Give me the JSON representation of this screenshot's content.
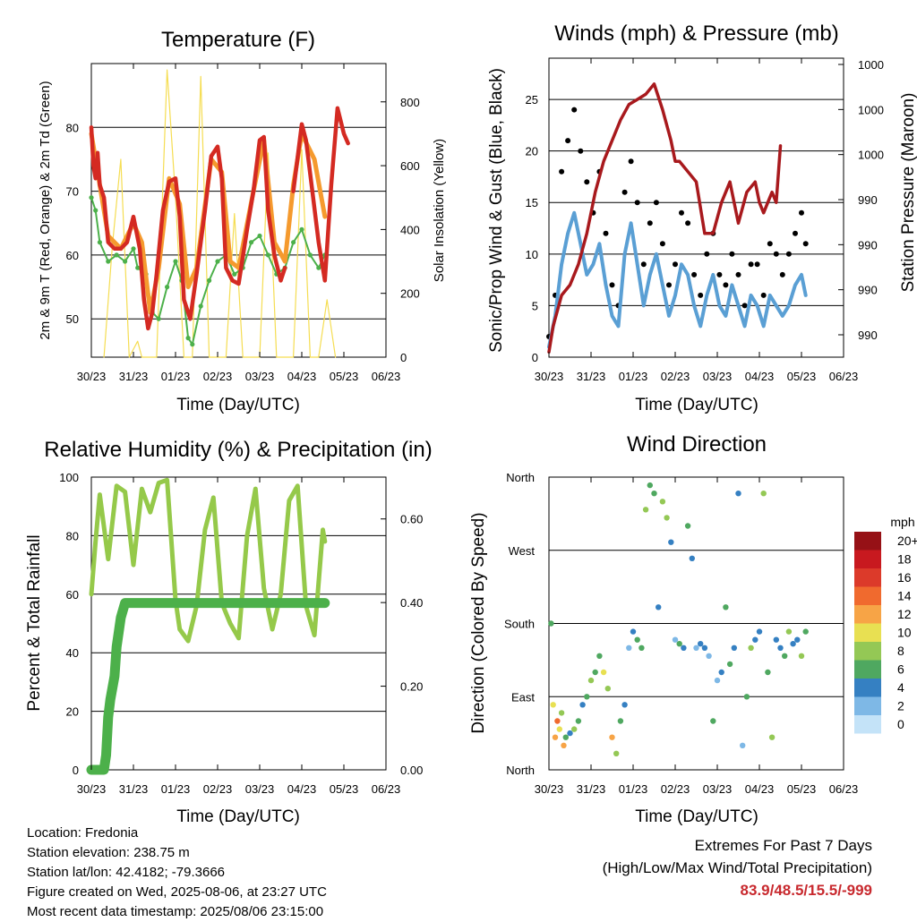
{
  "x_ticks": [
    "30/23",
    "31/23",
    "01/23",
    "02/23",
    "03/23",
    "04/23",
    "05/23",
    "06/23"
  ],
  "colors": {
    "temp_red": "#d42a22",
    "temp_orange": "#f59a2e",
    "dew_green": "#4cb04a",
    "solar_yellow": "#f5dd52",
    "wind_blue": "#5a9fd4",
    "gust_black": "#000000",
    "pressure_maroon": "#a8191d",
    "rh_green": "#95c94a",
    "precip_green": "#4cb04a",
    "extremes": "#c8292e"
  },
  "chart_data": [
    {
      "type": "line",
      "title": "Temperature (F)",
      "xlabel": "Time (Day/UTC)",
      "ylabel": "2m & 9m T (Red, Orange) & 2m Td (Green)",
      "ylabel_right": "Solar Insolation (Yellow)",
      "ylim": [
        44,
        90
      ],
      "ylim_right": [
        0,
        920
      ],
      "yticks": [
        50,
        60,
        70,
        80
      ],
      "yticks_right": [
        0,
        200,
        400,
        600,
        800
      ],
      "series": [
        {
          "name": "2m T",
          "color": "#d42a22",
          "x": [
            0,
            0.05,
            0.1,
            0.15,
            0.2,
            0.3,
            0.4,
            0.55,
            0.7,
            0.85,
            1,
            1.15,
            1.25,
            1.35,
            1.45,
            1.55,
            1.7,
            1.85,
            2,
            2.1,
            2.2,
            2.35,
            2.5,
            2.7,
            2.85,
            3,
            3.1,
            3.2,
            3.35,
            3.5,
            3.7,
            3.85,
            4,
            4.1,
            4.2,
            4.35,
            4.5,
            4.6,
            4.8,
            5,
            5.1,
            5.25,
            5.4,
            5.55,
            5.7,
            5.85,
            6,
            6.1
          ],
          "y": [
            80,
            74,
            72,
            76,
            71,
            69,
            62,
            61,
            61,
            62,
            66,
            61,
            53,
            48.5,
            51,
            57,
            67,
            71.5,
            72,
            66,
            53,
            50,
            57,
            67,
            75.5,
            77,
            72,
            58,
            56,
            55.5,
            64,
            70,
            78,
            78.5,
            67,
            60,
            56,
            58,
            70,
            80.5,
            78,
            70,
            62,
            56,
            71,
            83,
            79,
            77.5
          ]
        },
        {
          "name": "9m T",
          "color": "#f59a2e",
          "x": [
            0,
            0.2,
            0.4,
            0.7,
            1,
            1.2,
            1.4,
            1.6,
            1.85,
            2.1,
            2.3,
            2.5,
            2.85,
            3.1,
            3.3,
            3.5,
            3.85,
            4.1,
            4.35,
            4.6,
            4.8,
            5,
            5.3,
            5.55
          ],
          "y": [
            79,
            71,
            63,
            61,
            65,
            62,
            51,
            58,
            72,
            68,
            55,
            58,
            75,
            73,
            59,
            58,
            70,
            78,
            62,
            59,
            71,
            79,
            75,
            66
          ]
        },
        {
          "name": "2m Td",
          "color": "#4cb04a",
          "x": [
            0,
            0.1,
            0.2,
            0.4,
            0.6,
            0.8,
            1,
            1.1,
            1.3,
            1.45,
            1.6,
            1.8,
            2,
            2.15,
            2.3,
            2.4,
            2.6,
            2.8,
            3,
            3.2,
            3.4,
            3.6,
            3.8,
            4,
            4.2,
            4.4,
            4.6,
            4.8,
            5,
            5.2,
            5.4,
            5.55
          ],
          "y": [
            69,
            67,
            62,
            59,
            60,
            59,
            61,
            58,
            57,
            51,
            50,
            55,
            59,
            56,
            47,
            46,
            52,
            56,
            59,
            60,
            57,
            58,
            62,
            63,
            60,
            57,
            58,
            62,
            64,
            60,
            58,
            60
          ]
        },
        {
          "name": "Solar",
          "color": "#f5dd52",
          "x": [
            0.3,
            0.5,
            0.7,
            0.9,
            1.1,
            1.2,
            1.55,
            1.8,
            2,
            2.2,
            2.4,
            2.6,
            2.8,
            3,
            3.2,
            3.4,
            3.6,
            3.8,
            4,
            4.2,
            4.4,
            4.6,
            4.8,
            5,
            5.2,
            5.4,
            5.6,
            5.8
          ],
          "y": [
            0,
            350,
            620,
            0,
            50,
            0,
            0,
            900,
            500,
            0,
            0,
            880,
            0,
            0,
            0,
            450,
            0,
            0,
            0,
            640,
            0,
            0,
            0,
            650,
            0,
            0,
            180,
            0
          ]
        }
      ]
    },
    {
      "type": "scatter",
      "title": "Winds (mph) & Pressure (mb)",
      "xlabel": "Time (Day/UTC)",
      "ylabel": "Sonic/Prop Wind & Gust (Blue, Black)",
      "ylabel_right": "Station Pressure (Maroon)",
      "ylim": [
        0,
        29
      ],
      "yticks": [
        0,
        5,
        10,
        15,
        20,
        25
      ],
      "yticks_right_labels": [
        "990",
        "990",
        "990",
        "990",
        "1000",
        "1000",
        "1000"
      ],
      "series": [
        {
          "name": "Wind",
          "color": "#5a9fd4",
          "x": [
            0,
            0.15,
            0.3,
            0.45,
            0.6,
            0.75,
            0.9,
            1.05,
            1.2,
            1.35,
            1.5,
            1.65,
            1.8,
            1.95,
            2.1,
            2.25,
            2.4,
            2.55,
            2.7,
            2.85,
            3,
            3.15,
            3.3,
            3.45,
            3.6,
            3.75,
            3.9,
            4.05,
            4.2,
            4.35,
            4.5,
            4.65,
            4.8,
            4.95,
            5.1,
            5.25,
            5.4,
            5.55,
            5.7,
            5.85,
            6,
            6.1
          ],
          "y": [
            1,
            4,
            9,
            12,
            14,
            11,
            8,
            9,
            11,
            7,
            4,
            3,
            10,
            13,
            9,
            5,
            8,
            10,
            7,
            4,
            6,
            9,
            8,
            5,
            3,
            6,
            8,
            5,
            4,
            7,
            5,
            3,
            6,
            5,
            3,
            6,
            5,
            4,
            5,
            7,
            8,
            6
          ]
        },
        {
          "name": "Gust",
          "color": "#000000",
          "x": [
            0,
            0.15,
            0.3,
            0.45,
            0.6,
            0.75,
            0.9,
            1.05,
            1.2,
            1.35,
            1.5,
            1.65,
            1.8,
            1.95,
            2.1,
            2.25,
            2.4,
            2.55,
            2.7,
            2.85,
            3,
            3.15,
            3.3,
            3.45,
            3.6,
            3.75,
            3.9,
            4.05,
            4.2,
            4.35,
            4.5,
            4.65,
            4.8,
            4.95,
            5.1,
            5.25,
            5.4,
            5.55,
            5.7,
            5.85,
            6,
            6.1
          ],
          "y": [
            2,
            6,
            18,
            21,
            24,
            20,
            17,
            14,
            18,
            12,
            7,
            5,
            16,
            19,
            15,
            9,
            13,
            15,
            11,
            7,
            9,
            14,
            13,
            8,
            6,
            10,
            12,
            8,
            7,
            10,
            8,
            5,
            9,
            9,
            6,
            11,
            10,
            8,
            10,
            12,
            14,
            11
          ]
        },
        {
          "name": "Pressure",
          "color": "#a8191d",
          "x": [
            0,
            0.1,
            0.3,
            0.5,
            0.7,
            0.9,
            1.1,
            1.3,
            1.5,
            1.7,
            1.9,
            2.1,
            2.3,
            2.5,
            2.7,
            2.9,
            3,
            3.1,
            3.3,
            3.5,
            3.7,
            3.9,
            4.1,
            4.3,
            4.5,
            4.7,
            4.9,
            5,
            5.1,
            5.2,
            5.3,
            5.4,
            5.5
          ],
          "y": [
            0.5,
            3,
            6,
            7,
            9,
            12,
            16,
            19,
            21,
            23,
            24.5,
            25,
            25.5,
            26.5,
            24,
            21,
            19,
            19,
            18,
            17,
            12,
            12,
            15,
            17,
            13,
            16,
            17,
            15,
            14,
            15,
            16,
            15,
            20.5
          ]
        }
      ]
    },
    {
      "type": "line",
      "title": "Relative Humidity (%) & Precipitation (in)",
      "xlabel": "Time (Day/UTC)",
      "ylabel": "Percent & Total Rainfall",
      "ylim": [
        0,
        100
      ],
      "ylim_right": [
        0,
        0.7
      ],
      "yticks": [
        0,
        20,
        40,
        60,
        80,
        100
      ],
      "yticks_right": [
        "0.00",
        "0.20",
        "0.40",
        "0.60"
      ],
      "series": [
        {
          "name": "RH",
          "color": "#95c94a",
          "x": [
            0,
            0.1,
            0.2,
            0.4,
            0.6,
            0.8,
            1,
            1.2,
            1.4,
            1.6,
            1.8,
            2,
            2.1,
            2.3,
            2.5,
            2.7,
            2.9,
            3.1,
            3.3,
            3.5,
            3.7,
            3.9,
            4.1,
            4.3,
            4.5,
            4.7,
            4.9,
            5.1,
            5.3,
            5.5,
            5.55
          ],
          "y": [
            60,
            78,
            94,
            72,
            97,
            95,
            70,
            96,
            88,
            98,
            99,
            58,
            48,
            44,
            56,
            82,
            93,
            57,
            50,
            45,
            80,
            96,
            62,
            48,
            60,
            92,
            97,
            56,
            46,
            82,
            78
          ]
        },
        {
          "name": "Precip",
          "color": "#4cb04a",
          "x": [
            0,
            0.3,
            0.35,
            0.4,
            0.45,
            0.55,
            0.6,
            0.7,
            0.8,
            5.55
          ],
          "y": [
            0,
            0,
            5,
            18,
            24,
            32,
            42,
            52,
            57,
            57
          ]
        }
      ]
    },
    {
      "type": "scatter",
      "title": "Wind Direction",
      "xlabel": "Time (Day/UTC)",
      "ylabel": "Direction (Colored By Speed)",
      "ytick_labels": [
        "North",
        "East",
        "South",
        "West",
        "North"
      ],
      "colorbar_unit": "mph",
      "colorbar_labels": [
        "20+",
        "18",
        "16",
        "14",
        "12",
        "10",
        "8",
        "6",
        "4",
        "2",
        "0"
      ],
      "colorbar_colors": [
        "#961116",
        "#c8191f",
        "#dc3a2a",
        "#f06a2e",
        "#f7a446",
        "#e8e052",
        "#94c855",
        "#4fa860",
        "#3580c2",
        "#7eb8e6",
        "#c4e3f8"
      ],
      "x": [
        0.05,
        0.1,
        0.15,
        0.2,
        0.25,
        0.3,
        0.35,
        0.4,
        0.5,
        0.6,
        0.7,
        0.8,
        0.9,
        1,
        1.1,
        1.2,
        1.3,
        1.4,
        1.5,
        1.6,
        1.7,
        1.8,
        1.9,
        2,
        2.1,
        2.2,
        2.3,
        2.4,
        2.5,
        2.6,
        2.7,
        2.8,
        2.9,
        3,
        3.1,
        3.2,
        3.3,
        3.4,
        3.5,
        3.6,
        3.7,
        3.8,
        3.9,
        4,
        4.1,
        4.2,
        4.3,
        4.4,
        4.5,
        4.6,
        4.7,
        4.8,
        4.9,
        5,
        5.1,
        5.2,
        5.3,
        5.4,
        5.5,
        5.6,
        5.7,
        5.8,
        5.9,
        6,
        6.1
      ],
      "y": [
        180,
        80,
        40,
        60,
        50,
        70,
        30,
        40,
        45,
        50,
        60,
        80,
        90,
        110,
        120,
        140,
        120,
        100,
        40,
        20,
        60,
        80,
        150,
        170,
        160,
        150,
        320,
        350,
        340,
        200,
        330,
        310,
        280,
        160,
        155,
        150,
        300,
        260,
        150,
        155,
        150,
        140,
        60,
        110,
        120,
        200,
        130,
        150,
        340,
        30,
        90,
        150,
        160,
        170,
        340,
        120,
        40,
        160,
        150,
        140,
        170,
        155,
        160,
        140,
        170
      ],
      "speed": [
        6,
        10,
        12,
        14,
        10,
        8,
        12,
        6,
        4,
        8,
        6,
        4,
        6,
        8,
        5,
        6,
        10,
        8,
        12,
        8,
        6,
        4,
        2,
        4,
        6,
        5,
        8,
        6,
        6,
        4,
        7,
        8,
        4,
        2,
        6,
        4,
        6,
        4,
        2,
        4,
        4,
        2,
        6,
        2,
        4,
        5,
        6,
        4,
        4,
        2,
        6,
        8,
        4,
        4,
        7,
        6,
        8,
        4,
        4,
        6,
        8,
        4,
        4,
        8,
        6
      ]
    }
  ],
  "info": {
    "location": "Location: Fredonia",
    "elevation": "Station elevation: 238.75 m",
    "latlon": "Station lat/lon: 42.4182; -79.3666",
    "created": "Figure created on Wed, 2025-08-06, at 23:27 UTC",
    "recent": "Most recent data timestamp: 2025/08/06 23:15:00"
  },
  "extremes": {
    "line1": "Extremes For Past 7 Days",
    "line2": "(High/Low/Max Wind/Total Precipitation)",
    "values": "83.9/48.5/15.5/-999"
  }
}
